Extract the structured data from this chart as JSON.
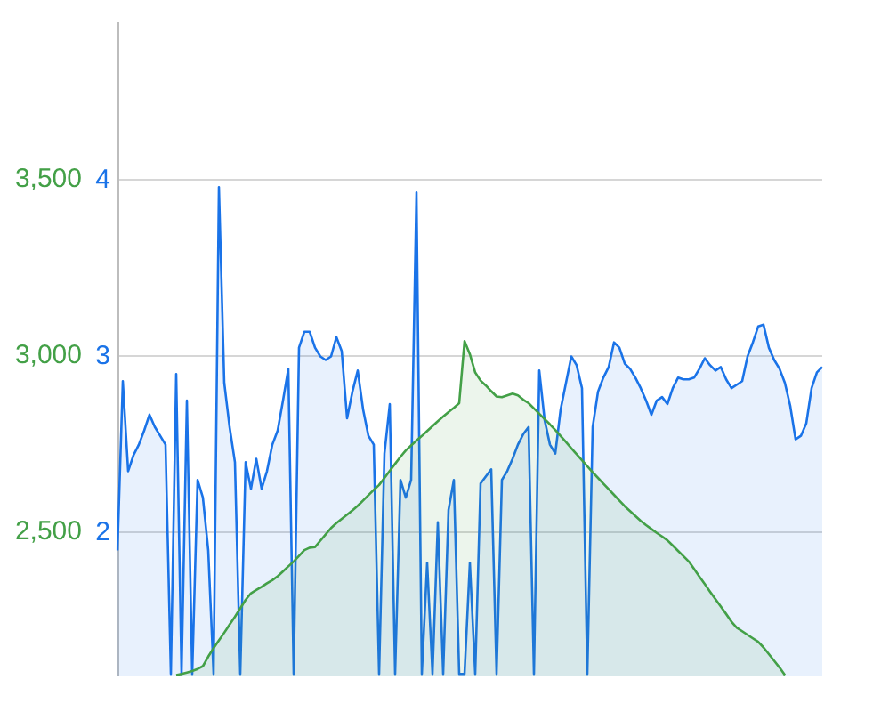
{
  "chart_data": {
    "type": "area",
    "categories": [
      null,
      null,
      null,
      null,
      null,
      null,
      null,
      null,
      null,
      null,
      null,
      null,
      null,
      null,
      null,
      null,
      null,
      null,
      null,
      null,
      null,
      null,
      null,
      null,
      null,
      null,
      null,
      null,
      null,
      null,
      null,
      null,
      null,
      null,
      null,
      null,
      null,
      null,
      null,
      null,
      null,
      null,
      null,
      null,
      null,
      null,
      null,
      null,
      null,
      null,
      null,
      null,
      null,
      null,
      null,
      null,
      null,
      null,
      null,
      null,
      null,
      null,
      null,
      null,
      null,
      null,
      null,
      null,
      null,
      null,
      null,
      null,
      null,
      null,
      null,
      null,
      null,
      null,
      null,
      null,
      null,
      null,
      null,
      null,
      null,
      null,
      null,
      null,
      null,
      null,
      null,
      null,
      null,
      null,
      null,
      null,
      null,
      null,
      null,
      null,
      null,
      null,
      null,
      null,
      null,
      null,
      null,
      null,
      null,
      null,
      null,
      null,
      null,
      null,
      null,
      null,
      null,
      null,
      null,
      null,
      null,
      null,
      null,
      null,
      null,
      null,
      null,
      null,
      null,
      null,
      null,
      null,
      null
    ],
    "ylim": [
      2093,
      3944
    ],
    "yticks": [
      {
        "value": 2500,
        "label": "2,500"
      },
      {
        "value": 3000,
        "label": "3,000"
      },
      {
        "value": 3500,
        "label": "3,500"
      }
    ],
    "y2lim": [
      1.19,
      4.89
    ],
    "y2ticks": [
      2,
      3,
      4
    ],
    "grid": "y",
    "series": [
      {
        "color": "#43a047",
        "values": [
          null,
          null,
          null,
          null,
          null,
          null,
          null,
          null,
          null,
          null,
          null,
          2095,
          2098,
          2102,
          2106,
          2112,
          2120,
          2147,
          2171,
          2193,
          2215,
          2238,
          2260,
          2284,
          2308,
          2327,
          2336,
          2345,
          2355,
          2364,
          2375,
          2389,
          2403,
          2417,
          2433,
          2449,
          2456,
          2458,
          2476,
          2494,
          2512,
          2526,
          2538,
          2550,
          2562,
          2575,
          2590,
          2605,
          2620,
          2634,
          2654,
          2674,
          2694,
          2714,
          2732,
          2746,
          2760,
          2773,
          2787,
          2801,
          2815,
          2828,
          2841,
          2853,
          2866,
          3042,
          3005,
          2953,
          2930,
          2916,
          2900,
          2885,
          2883,
          2888,
          2893,
          2888,
          2876,
          2866,
          2851,
          2836,
          2821,
          2806,
          2790,
          2773,
          2756,
          2738,
          2721,
          2704,
          2687,
          2670,
          2654,
          2638,
          2622,
          2606,
          2590,
          2574,
          2560,
          2546,
          2532,
          2520,
          2509,
          2498,
          2488,
          2477,
          2462,
          2447,
          2432,
          2417,
          2396,
          2374,
          2353,
          2331,
          2310,
          2289,
          2268,
          2246,
          2229,
          2219,
          2209,
          2199,
          2189,
          2173,
          2154,
          2135,
          2116,
          2095,
          null,
          null,
          null,
          null,
          null,
          null,
          null
        ]
      },
      {
        "color": "#1a73e8",
        "axis": "y2",
        "values": [
          1.9,
          2.86,
          2.35,
          2.44,
          2.5,
          2.58,
          2.67,
          2.6,
          2.55,
          2.5,
          1.2,
          2.9,
          1.2,
          2.75,
          1.2,
          2.3,
          2.2,
          1.9,
          1.2,
          3.96,
          2.85,
          2.6,
          2.4,
          1.2,
          2.4,
          2.25,
          2.42,
          2.25,
          2.35,
          2.5,
          2.58,
          2.75,
          2.93,
          1.2,
          3.05,
          3.14,
          3.14,
          3.05,
          3.0,
          2.98,
          3.0,
          3.11,
          3.03,
          2.65,
          2.8,
          2.92,
          2.7,
          2.55,
          2.5,
          1.2,
          2.45,
          2.73,
          1.2,
          2.3,
          2.2,
          2.3,
          3.93,
          1.2,
          1.83,
          1.2,
          2.06,
          1.2,
          2.13,
          2.3,
          1.2,
          1.2,
          1.83,
          1.2,
          2.28,
          2.32,
          2.36,
          1.2,
          2.3,
          2.35,
          2.42,
          2.5,
          2.56,
          2.6,
          1.2,
          2.92,
          2.64,
          2.5,
          2.45,
          2.7,
          2.85,
          3.0,
          2.95,
          2.82,
          1.2,
          2.6,
          2.8,
          2.88,
          2.94,
          3.08,
          3.05,
          2.96,
          2.93,
          2.88,
          2.82,
          2.75,
          2.67,
          2.75,
          2.77,
          2.73,
          2.82,
          2.88,
          2.87,
          2.87,
          2.88,
          2.93,
          2.99,
          2.95,
          2.92,
          2.94,
          2.87,
          2.82,
          2.84,
          2.86,
          3.0,
          3.08,
          3.17,
          3.18,
          3.05,
          2.98,
          2.93,
          2.85,
          2.72,
          2.53,
          2.55,
          2.62,
          2.82,
          2.91,
          2.94
        ]
      }
    ]
  }
}
